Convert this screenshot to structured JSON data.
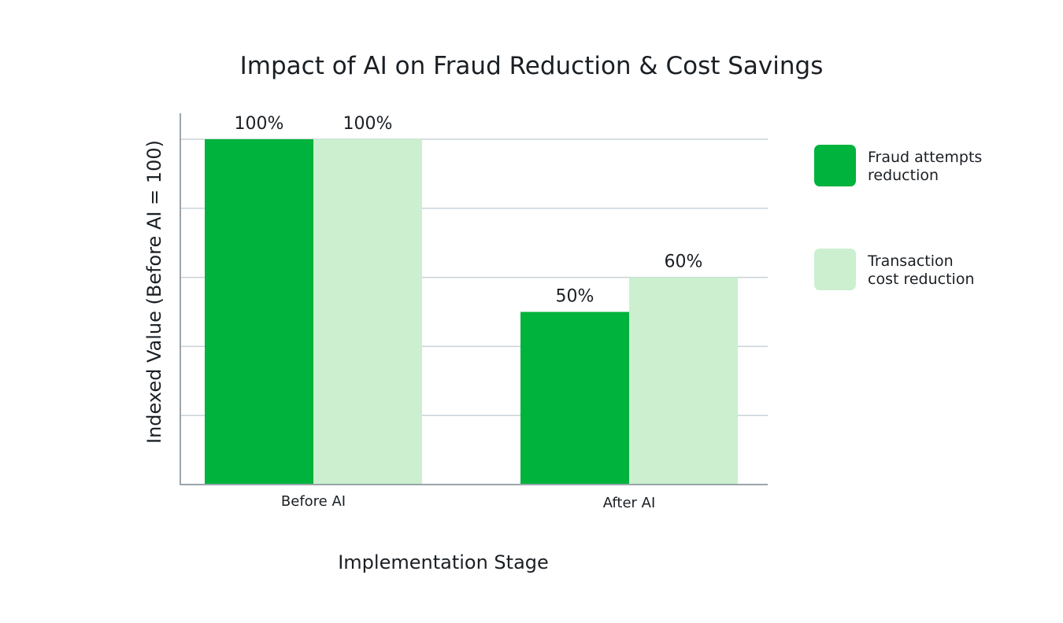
{
  "chart_data": {
    "type": "bar",
    "title": "Impact of AI on Fraud Reduction & Cost Savings",
    "xlabel": "Implementation Stage",
    "ylabel": "Indexed Value (Before AI = 100)",
    "categories": [
      "Before AI",
      "After AI"
    ],
    "series": [
      {
        "name": "Fraud attempts reduction",
        "legend_lines": [
          "Fraud attempts",
          "reduction"
        ],
        "values": [
          100,
          50
        ],
        "labels": [
          "100%",
          "50%"
        ],
        "color": "#00b33c"
      },
      {
        "name": "Transaction cost reduction",
        "legend_lines": [
          "Transaction",
          "cost reduction"
        ],
        "values": [
          100,
          60
        ],
        "labels": [
          "100%",
          "60%"
        ],
        "color": "#cbefcf"
      }
    ],
    "ylim": [
      0,
      100
    ],
    "y_gridlines": [
      0,
      20,
      40,
      60,
      80,
      100
    ],
    "y_tick_labels_shown": false,
    "grid": true,
    "legend_position": "right",
    "axis_color": "#9aa5ab",
    "grid_color": "#c8d3d8"
  }
}
